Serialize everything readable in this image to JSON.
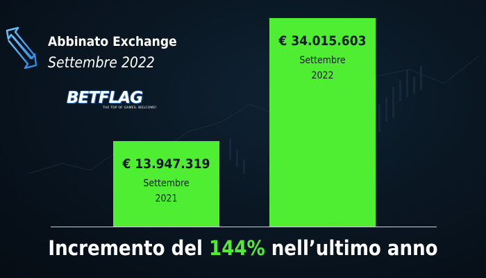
{
  "header": {
    "title": "Abbinato Exchange",
    "subtitle": "Settembre 2022",
    "brand": "BETFLAG",
    "brand_tagline": "THE TOP OF GAMES. WELCOME!"
  },
  "chart_data": {
    "type": "bar",
    "categories": [
      "Settembre 2021",
      "Settembre 2022"
    ],
    "values": [
      13947319,
      34015603
    ],
    "value_labels": [
      "€ 13.947.319",
      "€ 34.015.603"
    ],
    "category_lines": [
      [
        "Settembre",
        "2021"
      ],
      [
        "Settembre",
        "2022"
      ]
    ],
    "ylim": [
      0,
      36000000
    ],
    "grid": false,
    "bar_color": "#50ee32"
  },
  "footer": {
    "text_before": "Incremento del ",
    "highlight": "144%",
    "text_after": " nell’ultimo anno",
    "highlight_color": "#50ee32"
  }
}
